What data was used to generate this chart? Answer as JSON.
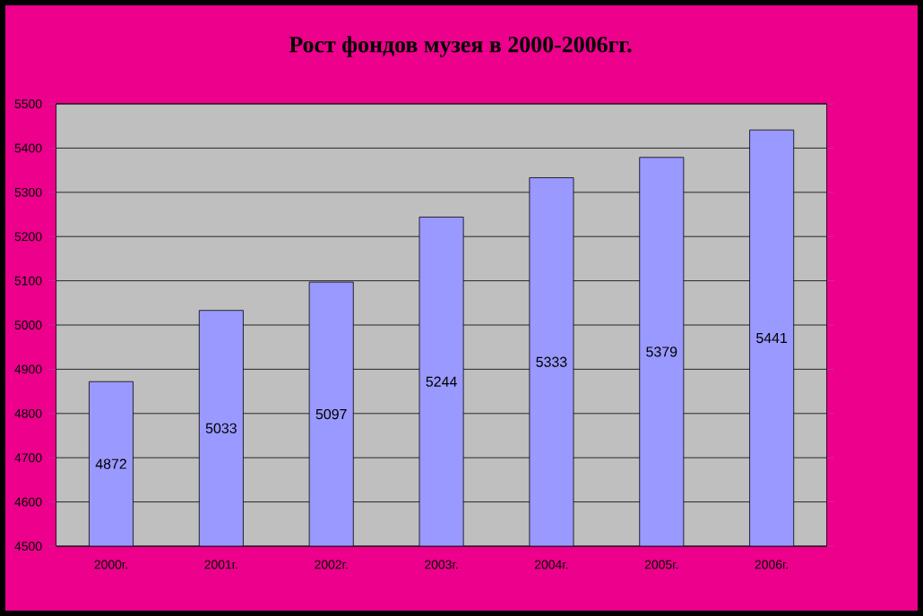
{
  "chart_data": {
    "type": "bar",
    "title": "Рост фондов музея в 2000-2006гг.",
    "categories": [
      "2000г.",
      "2001г.",
      "2002г.",
      "2003г.",
      "2004г.",
      "2005г.",
      "2006г."
    ],
    "values": [
      4872,
      5033,
      5097,
      5244,
      5333,
      5379,
      5441
    ],
    "color": "#9999ff",
    "ylim": [
      4500,
      5500
    ],
    "yticks": [
      4500,
      4600,
      4700,
      4800,
      4900,
      5000,
      5100,
      5200,
      5300,
      5400,
      5500
    ],
    "grid": "y",
    "data_labels": true
  }
}
